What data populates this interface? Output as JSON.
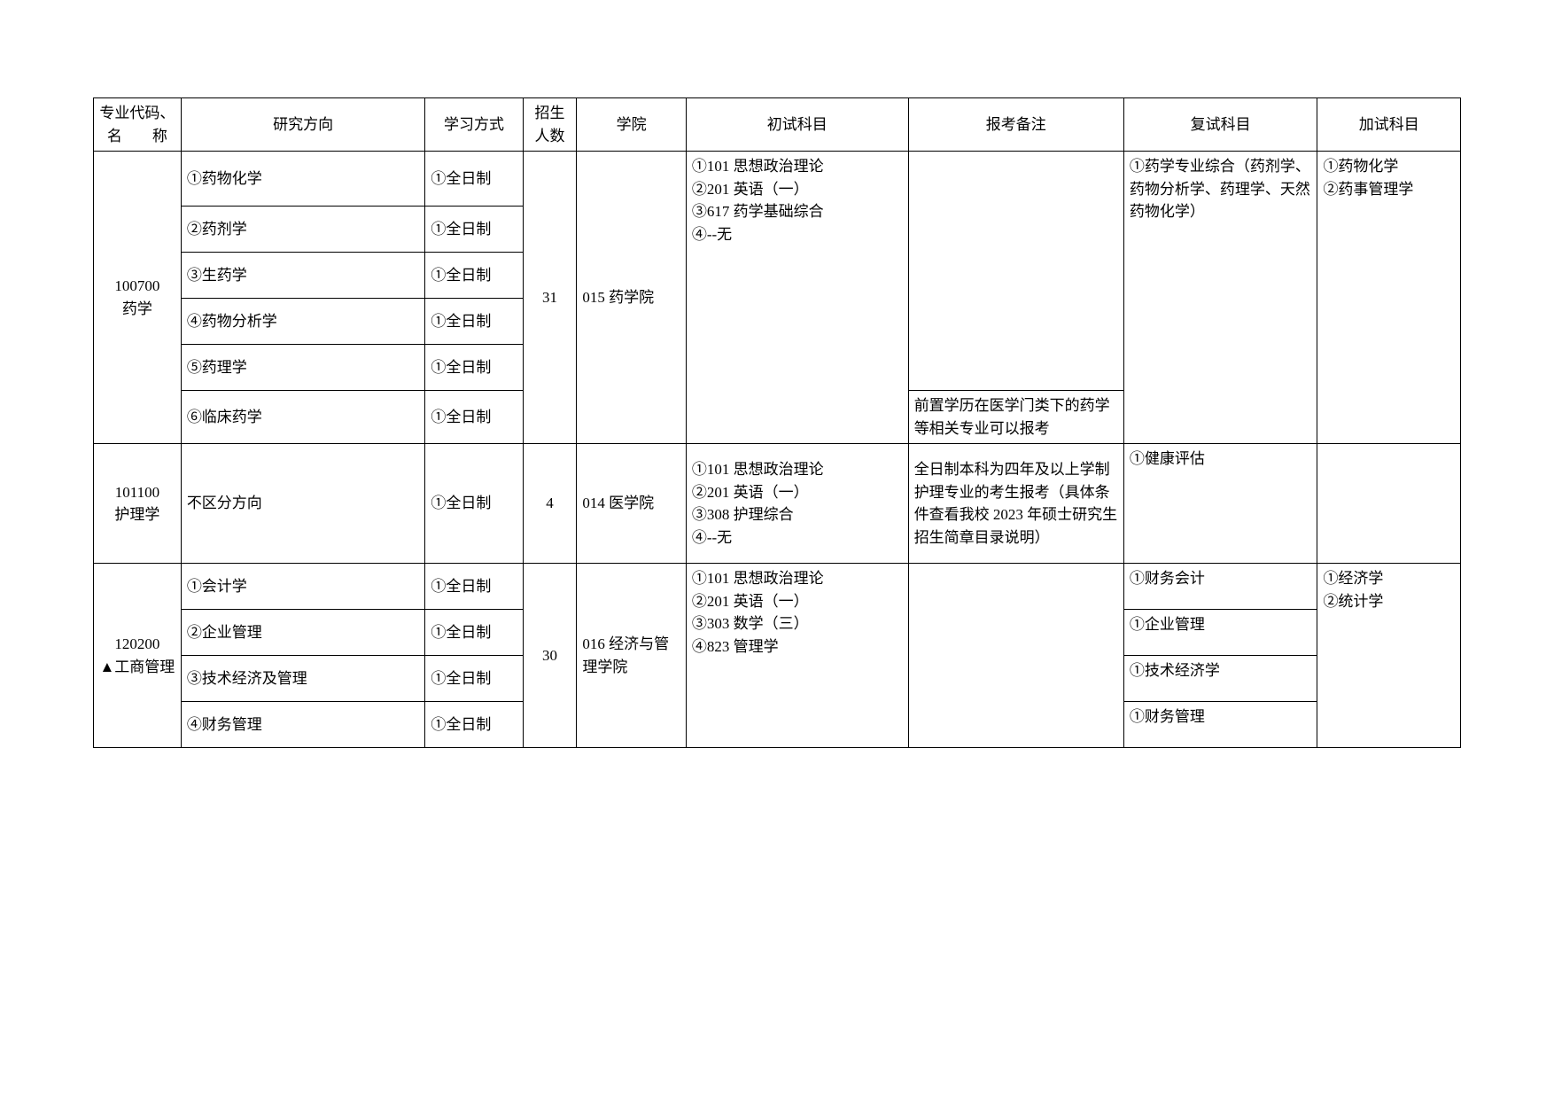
{
  "headers": {
    "code": "专业代码、名　　称",
    "direction": "研究方向",
    "mode": "学习方式",
    "quota": "招生人数",
    "school": "学院",
    "exam1": "初试科目",
    "notes": "报考备注",
    "exam2": "复试科目",
    "extra": "加试科目"
  },
  "majors": [
    {
      "code": "100700\n药学",
      "quota": "31",
      "school": "015 药学院",
      "exam1_shared": "①101 思想政治理论\n②201 英语（一）\n③617 药学基础综合\n④--无",
      "exam2_shared": "①药学专业综合（药剂学、药物分析学、药理学、天然药物化学）",
      "extra_shared": "①药物化学\n②药事管理学",
      "rows": [
        {
          "dir": "①药物化学",
          "mode": "①全日制",
          "notes": ""
        },
        {
          "dir": "②药剂学",
          "mode": "①全日制",
          "notes": ""
        },
        {
          "dir": "③生药学",
          "mode": "①全日制",
          "notes": ""
        },
        {
          "dir": "④药物分析学",
          "mode": "①全日制",
          "notes": ""
        },
        {
          "dir": "⑤药理学",
          "mode": "①全日制",
          "notes": ""
        },
        {
          "dir": "⑥临床药学",
          "mode": "①全日制",
          "notes": "前置学历在医学门类下的药学等相关专业可以报考"
        }
      ]
    },
    {
      "code": "101100\n护理学",
      "quota": "4",
      "school": "014 医学院",
      "rows": [
        {
          "dir": "不区分方向",
          "mode": "①全日制",
          "exam1": "①101 思想政治理论\n②201 英语（一）\n③308 护理综合\n④--无",
          "notes": "全日制本科为四年及以上学制护理专业的考生报考（具体条件查看我校 2023 年硕士研究生招生简章目录说明）",
          "exam2": "①健康评估",
          "extra": ""
        }
      ]
    },
    {
      "code": "120200\n▲工商管理",
      "quota": "30",
      "school": "016 经济与管理学院",
      "exam1_shared": "①101 思想政治理论\n②201 英语（一）\n③303 数学（三）\n④823 管理学",
      "extra_shared": "①经济学\n②统计学",
      "rows": [
        {
          "dir": "①会计学",
          "mode": "①全日制",
          "notes": "",
          "exam2": "①财务会计"
        },
        {
          "dir": "②企业管理",
          "mode": "①全日制",
          "notes": "",
          "exam2": "①企业管理"
        },
        {
          "dir": "③技术经济及管理",
          "mode": "①全日制",
          "notes": "",
          "exam2": "①技术经济学"
        },
        {
          "dir": "④财务管理",
          "mode": "①全日制",
          "notes": "",
          "exam2": "①财务管理"
        }
      ]
    }
  ]
}
